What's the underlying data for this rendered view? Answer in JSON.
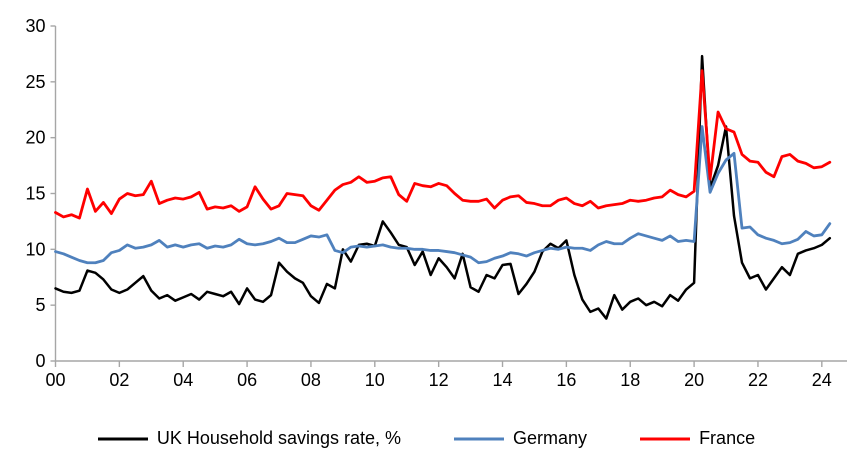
{
  "chart_data": {
    "type": "line",
    "title": "",
    "ylabel": "",
    "xlabel": "",
    "ylim": [
      0,
      30
    ],
    "y_ticks": [
      0,
      5,
      10,
      15,
      20,
      25,
      30
    ],
    "x_tick_labels": [
      "00",
      "02",
      "04",
      "06",
      "08",
      "10",
      "12",
      "14",
      "16",
      "18",
      "20",
      "22",
      "24"
    ],
    "x_start_year": 2000,
    "points_per_year": 4,
    "grid": "off",
    "legend_position": "bottom",
    "axis_color": "#a6a6a6",
    "series": [
      {
        "name": "UK Household savings rate, %",
        "color": "#000000",
        "stroke_width": 2.5,
        "values": [
          6.5,
          6.2,
          6.1,
          6.3,
          8.1,
          7.9,
          7.3,
          6.4,
          6.1,
          6.4,
          7.0,
          7.6,
          6.3,
          5.6,
          5.9,
          5.4,
          5.7,
          6.0,
          5.5,
          6.2,
          6.0,
          5.8,
          6.2,
          5.1,
          6.5,
          5.5,
          5.3,
          5.9,
          8.8,
          8.0,
          7.4,
          7.0,
          5.8,
          5.2,
          6.9,
          6.5,
          10.0,
          8.9,
          10.4,
          10.5,
          10.3,
          12.5,
          11.5,
          10.4,
          10.2,
          8.6,
          9.8,
          7.7,
          9.2,
          8.4,
          7.4,
          9.6,
          6.6,
          6.2,
          7.7,
          7.4,
          8.6,
          8.7,
          6.0,
          6.9,
          8.0,
          9.8,
          10.5,
          10.1,
          10.8,
          7.7,
          5.5,
          4.4,
          4.7,
          3.8,
          5.9,
          4.6,
          5.3,
          5.6,
          5.0,
          5.3,
          4.9,
          5.9,
          5.4,
          6.4,
          7.0,
          27.3,
          15.5,
          17.5,
          21.0,
          13.0,
          8.8,
          7.4,
          7.7,
          6.4,
          7.4,
          8.4,
          7.7,
          9.6,
          9.9,
          10.1,
          10.4,
          11.0
        ]
      },
      {
        "name": "Germany",
        "color": "#4F81BD",
        "stroke_width": 2.8,
        "values": [
          9.8,
          9.6,
          9.3,
          9.0,
          8.8,
          8.8,
          9.0,
          9.7,
          9.9,
          10.4,
          10.1,
          10.2,
          10.4,
          10.8,
          10.2,
          10.4,
          10.2,
          10.4,
          10.5,
          10.1,
          10.3,
          10.2,
          10.4,
          10.9,
          10.5,
          10.4,
          10.5,
          10.7,
          11.0,
          10.6,
          10.6,
          10.9,
          11.2,
          11.1,
          11.3,
          9.9,
          9.7,
          10.2,
          10.3,
          10.2,
          10.3,
          10.4,
          10.2,
          10.1,
          10.1,
          10.0,
          10.0,
          9.9,
          9.9,
          9.8,
          9.7,
          9.5,
          9.3,
          8.8,
          8.9,
          9.2,
          9.4,
          9.7,
          9.6,
          9.4,
          9.7,
          9.9,
          10.1,
          10.0,
          10.2,
          10.1,
          10.1,
          9.9,
          10.4,
          10.7,
          10.5,
          10.5,
          11.0,
          11.4,
          11.2,
          11.0,
          10.8,
          11.2,
          10.7,
          10.8,
          10.7,
          21.0,
          15.1,
          16.8,
          18.0,
          18.6,
          11.9,
          12.0,
          11.3,
          11.0,
          10.8,
          10.5,
          10.6,
          10.9,
          11.6,
          11.2,
          11.3,
          12.3
        ]
      },
      {
        "name": "France",
        "color": "#FF0000",
        "stroke_width": 2.8,
        "values": [
          13.3,
          12.9,
          13.1,
          12.8,
          15.4,
          13.4,
          14.2,
          13.2,
          14.5,
          15.0,
          14.8,
          14.9,
          16.1,
          14.1,
          14.4,
          14.6,
          14.5,
          14.7,
          15.1,
          13.6,
          13.8,
          13.7,
          13.9,
          13.4,
          13.8,
          15.6,
          14.5,
          13.6,
          13.9,
          15.0,
          14.9,
          14.8,
          13.9,
          13.5,
          14.4,
          15.3,
          15.8,
          16.0,
          16.5,
          16.0,
          16.1,
          16.4,
          16.5,
          14.9,
          14.3,
          15.9,
          15.7,
          15.6,
          15.9,
          15.7,
          15.0,
          14.4,
          14.3,
          14.3,
          14.5,
          13.7,
          14.4,
          14.7,
          14.8,
          14.2,
          14.1,
          13.9,
          13.9,
          14.4,
          14.6,
          14.1,
          13.9,
          14.3,
          13.7,
          13.9,
          14.0,
          14.1,
          14.4,
          14.3,
          14.4,
          14.6,
          14.7,
          15.3,
          14.9,
          14.7,
          15.2,
          26.0,
          16.3,
          22.3,
          20.8,
          20.5,
          18.5,
          17.9,
          17.8,
          16.9,
          16.5,
          18.3,
          18.5,
          17.9,
          17.7,
          17.3,
          17.4,
          17.8
        ]
      }
    ]
  }
}
